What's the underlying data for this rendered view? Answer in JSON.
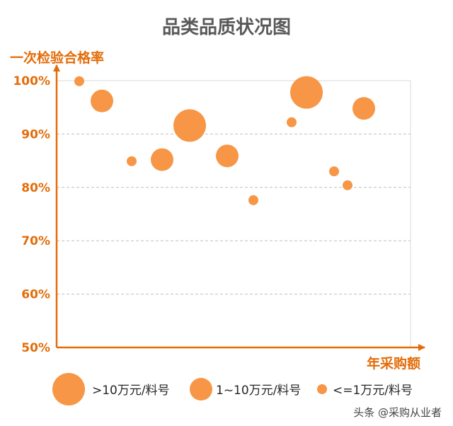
{
  "chart_data": {
    "type": "scatter",
    "title": "品类品质状况图",
    "ylabel": "一次检验合格率",
    "xlabel": "年采购额",
    "ylim": [
      50,
      100
    ],
    "xlim": [
      0,
      100
    ],
    "yticks": [
      {
        "value": 100,
        "label": "100%"
      },
      {
        "value": 90,
        "label": "90%"
      },
      {
        "value": 80,
        "label": "80%"
      },
      {
        "value": 70,
        "label": "70%"
      },
      {
        "value": 60,
        "label": "60%"
      },
      {
        "value": 50,
        "label": "50%"
      }
    ],
    "grid": true,
    "legend_position": "bottom",
    "size_classes": [
      {
        "name": ">10万元/料号",
        "size": "large"
      },
      {
        "name": "1~10万元/料号",
        "size": "medium"
      },
      {
        "name": "<=1万元/料号",
        "size": "small"
      }
    ],
    "points": [
      {
        "x": 6.4,
        "y": 99.9,
        "size": "small"
      },
      {
        "x": 12.8,
        "y": 96.2,
        "size": "medium"
      },
      {
        "x": 21.2,
        "y": 84.9,
        "size": "small"
      },
      {
        "x": 29.8,
        "y": 85.2,
        "size": "medium"
      },
      {
        "x": 37.6,
        "y": 91.6,
        "size": "large"
      },
      {
        "x": 48.2,
        "y": 85.9,
        "size": "medium"
      },
      {
        "x": 55.6,
        "y": 77.6,
        "size": "small"
      },
      {
        "x": 66.4,
        "y": 92.2,
        "size": "small"
      },
      {
        "x": 70.6,
        "y": 97.8,
        "size": "large"
      },
      {
        "x": 78.4,
        "y": 83.0,
        "size": "small"
      },
      {
        "x": 82.2,
        "y": 80.4,
        "size": "small"
      },
      {
        "x": 86.8,
        "y": 94.8,
        "size": "medium"
      }
    ]
  },
  "colors": {
    "bubble": "#f79646",
    "accent": "#e36c09",
    "grid": "#bfbfbf",
    "plot_border": "#d9d9d9"
  },
  "watermark": "头条 @采购从业者"
}
